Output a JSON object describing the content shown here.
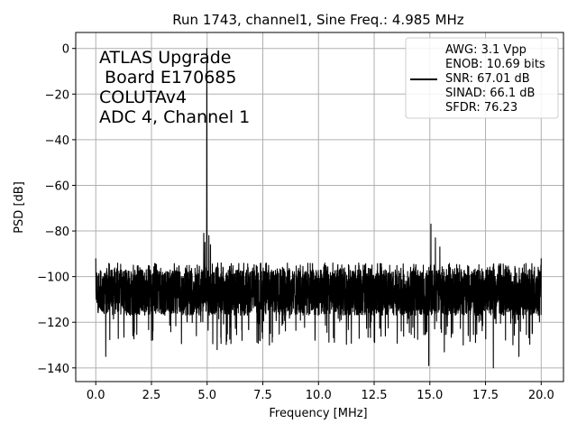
{
  "chart_data": {
    "type": "line",
    "title": "Run 1743, channel1, Sine Freq.: 4.985 MHz",
    "xlabel": "Frequency [MHz]",
    "ylabel": "PSD [dB]",
    "xlim": [
      -0.9,
      21.0
    ],
    "ylim": [
      -146,
      7
    ],
    "xticks": [
      0.0,
      2.5,
      5.0,
      7.5,
      10.0,
      12.5,
      15.0,
      17.5,
      20.0
    ],
    "xtick_labels": [
      "0.0",
      "2.5",
      "5.0",
      "7.5",
      "10.0",
      "12.5",
      "15.0",
      "17.5",
      "20.0"
    ],
    "yticks": [
      0,
      -20,
      -40,
      -60,
      -80,
      -100,
      -120,
      -140
    ],
    "ytick_labels": [
      "0",
      "−20",
      "−40",
      "−60",
      "−80",
      "−100",
      "−120",
      "−140"
    ],
    "grid": true,
    "line_color": "#000000",
    "annotation_lines": [
      "ATLAS Upgrade",
      " Board E170685",
      "COLUTAv4",
      "ADC 4, Channel 1"
    ],
    "legend": {
      "placement": "upper-right",
      "lines": [
        "AWG: 3.1 Vpp",
        "ENOB: 10.69 bits",
        "SNR: 67.01 dB",
        "SINAD: 66.1 dB",
        "SFDR: 76.23"
      ]
    },
    "series": [
      {
        "noise_floor_db": -108,
        "noise_band_db": [
          -117,
          -97
        ],
        "fundamental": {
          "x": 4.985,
          "y": 0.0
        },
        "spurs": [
          {
            "x": 0.0,
            "y": -92
          },
          {
            "x": 4.85,
            "y": -81
          },
          {
            "x": 4.9,
            "y": -85
          },
          {
            "x": 5.08,
            "y": -82
          },
          {
            "x": 5.15,
            "y": -86
          },
          {
            "x": 14.95,
            "y": -76
          },
          {
            "x": 15.05,
            "y": -77
          },
          {
            "x": 15.25,
            "y": -83
          },
          {
            "x": 15.45,
            "y": -87
          },
          {
            "x": 20.0,
            "y": -92
          }
        ],
        "dips": [
          {
            "x": 0.45,
            "y": -135
          },
          {
            "x": 2.5,
            "y": -128
          },
          {
            "x": 5.45,
            "y": -132
          },
          {
            "x": 7.8,
            "y": -130
          },
          {
            "x": 14.95,
            "y": -139
          },
          {
            "x": 15.65,
            "y": -133
          },
          {
            "x": 16.5,
            "y": -130
          },
          {
            "x": 17.85,
            "y": -140
          },
          {
            "x": 19.0,
            "y": -135
          }
        ]
      }
    ]
  }
}
